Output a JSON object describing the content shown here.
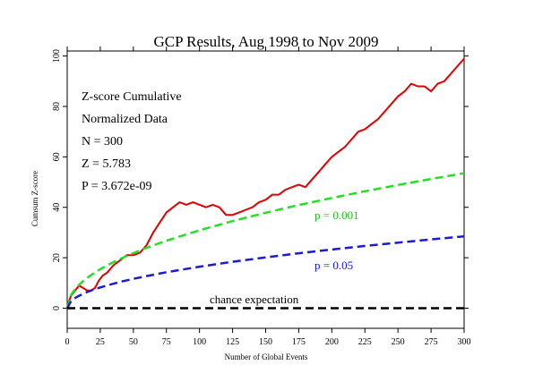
{
  "chart_data": {
    "type": "line",
    "title": "GCP Results, Aug 1998 to Nov 2009",
    "xlabel": "Number of Global Events",
    "ylabel": "Cumsum Z-score",
    "xlim": [
      0,
      300
    ],
    "ylim": [
      -8,
      102
    ],
    "xticks": [
      0,
      25,
      50,
      75,
      100,
      125,
      150,
      175,
      200,
      225,
      250,
      275,
      300
    ],
    "yticks": [
      0,
      20,
      40,
      60,
      80,
      100
    ],
    "grid": false,
    "annotations": {
      "line1": "Z-score Cumulative",
      "line2": "Normalized Data",
      "line3": "N = 300",
      "line4": "Z = 5.783",
      "line5": "P = 3.672e-09",
      "p001_label": "p = 0.001",
      "p05_label": "p = 0.05",
      "chance_label": "chance expectation"
    },
    "series": [
      {
        "key": "cumulative",
        "color": "#e00000",
        "style": "solid",
        "x": [
          0,
          3,
          6,
          9,
          12,
          15,
          18,
          21,
          24,
          27,
          30,
          35,
          40,
          45,
          50,
          55,
          60,
          65,
          70,
          75,
          80,
          85,
          90,
          95,
          100,
          105,
          110,
          115,
          120,
          125,
          130,
          135,
          140,
          145,
          150,
          155,
          160,
          165,
          170,
          175,
          180,
          185,
          190,
          195,
          200,
          205,
          210,
          215,
          220,
          225,
          230,
          235,
          240,
          245,
          250,
          255,
          260,
          265,
          270,
          275,
          280,
          285,
          290,
          295,
          300
        ],
        "y": [
          1,
          5,
          7,
          9,
          8,
          7,
          7,
          8,
          11,
          13,
          14,
          17,
          19,
          21,
          21,
          22,
          25,
          30,
          34,
          38,
          40,
          42,
          41,
          42,
          41,
          40,
          41,
          40,
          37,
          37,
          38,
          39,
          40,
          42,
          43,
          45,
          45,
          47,
          48,
          49,
          48,
          51,
          54,
          57,
          60,
          62,
          64,
          67,
          70,
          71,
          73,
          75,
          78,
          81,
          84,
          86,
          89,
          88,
          88,
          86,
          89,
          90,
          93,
          96,
          99
        ]
      },
      {
        "key": "p001",
        "color": "#22e022",
        "style": "dashed",
        "x": [
          0,
          3,
          6,
          9,
          12,
          15,
          20,
          25,
          30,
          40,
          50,
          60,
          75,
          100,
          125,
          150,
          175,
          200,
          225,
          250,
          275,
          300
        ],
        "y": [
          0,
          5.35,
          7.57,
          9.27,
          10.71,
          11.97,
          13.82,
          15.45,
          16.93,
          19.54,
          21.85,
          23.93,
          26.76,
          30.9,
          34.55,
          37.85,
          40.88,
          43.7,
          46.35,
          48.86,
          51.25,
          53.53
        ]
      },
      {
        "key": "p05",
        "color": "#1a1ad8",
        "style": "dashed",
        "x": [
          0,
          3,
          6,
          9,
          12,
          15,
          20,
          25,
          30,
          40,
          50,
          60,
          75,
          100,
          125,
          150,
          175,
          200,
          225,
          250,
          275,
          300
        ],
        "y": [
          0,
          2.85,
          4.03,
          4.93,
          5.7,
          6.37,
          7.35,
          8.22,
          9.0,
          10.4,
          11.63,
          12.74,
          14.24,
          16.45,
          18.39,
          20.14,
          21.76,
          23.26,
          24.67,
          26.0,
          27.27,
          28.49
        ]
      },
      {
        "key": "chance",
        "color": "#000000",
        "style": "dashed",
        "x": [
          0,
          300
        ],
        "y": [
          0,
          0
        ]
      }
    ]
  }
}
